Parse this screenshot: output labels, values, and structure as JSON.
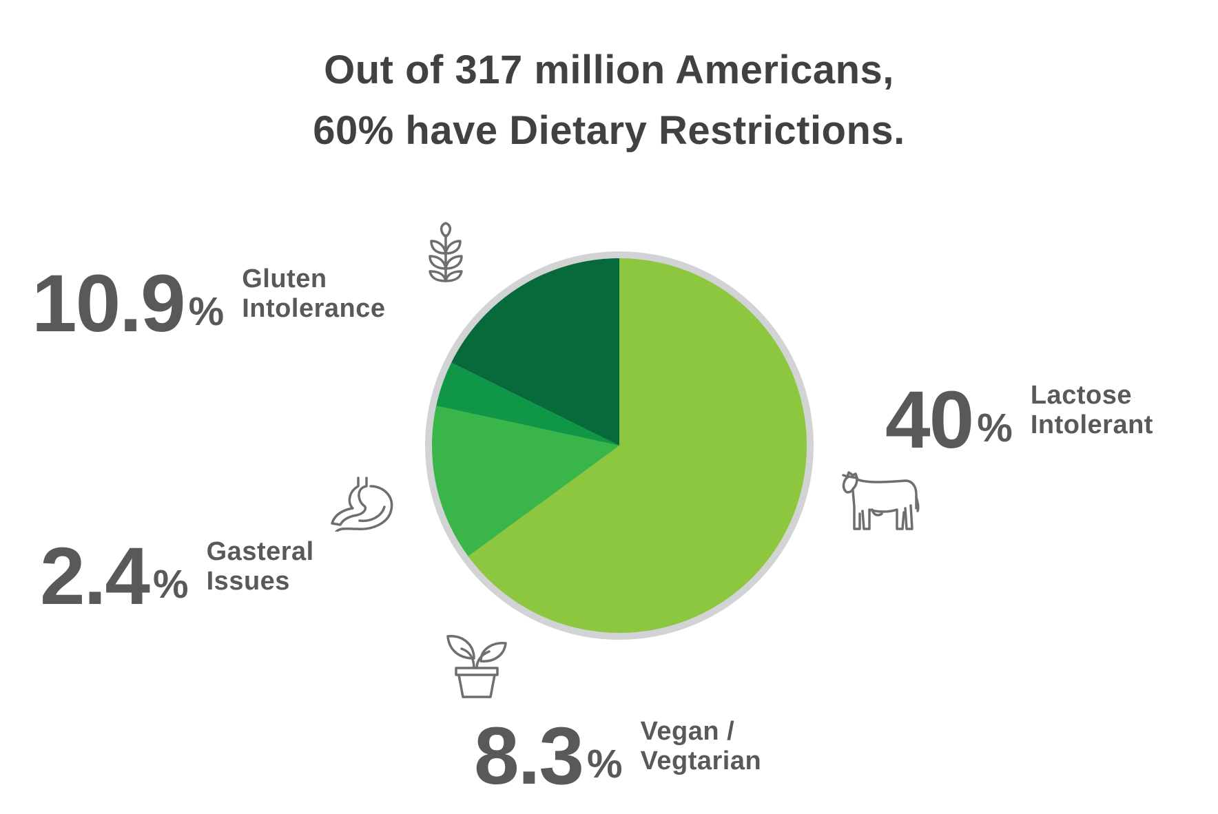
{
  "title": {
    "line1": "Out of 317 million Americans,",
    "line2": "60% have Dietary Restrictions."
  },
  "chart_data": {
    "type": "pie",
    "start_angle_deg": 0,
    "direction": "clockwise",
    "slices": [
      {
        "name": "Lactose Intolerant",
        "value": 40,
        "percent": "40",
        "color": "#8dc63f"
      },
      {
        "name": "Vegan / Vegtarian",
        "value": 8.3,
        "percent": "8.3",
        "color": "#3ab54a"
      },
      {
        "name": "Gasteral Issues",
        "value": 2.4,
        "percent": "2.4",
        "color": "#0f9646"
      },
      {
        "name": "Gluten Intolerance",
        "value": 10.9,
        "percent": "10.9",
        "color": "#076a3a"
      }
    ],
    "ring_color": "#d1d3d4"
  },
  "labels": {
    "gluten": {
      "percent": "10.9",
      "symbol": "%",
      "line1": "Gluten",
      "line2": "Intolerance",
      "icon": "wheat-icon"
    },
    "lactose": {
      "percent": "40",
      "symbol": "%",
      "line1": "Lactose",
      "line2": "Intolerant",
      "icon": "cow-icon"
    },
    "gasteral": {
      "percent": "2.4",
      "symbol": "%",
      "line1": "Gasteral",
      "line2": "Issues",
      "icon": "stomach-icon"
    },
    "vegan": {
      "percent": "8.3",
      "symbol": "%",
      "line1": "Vegan /",
      "line2": "Vegtarian",
      "icon": "potted-plant-icon"
    }
  },
  "icon_color": "#6d6e71"
}
